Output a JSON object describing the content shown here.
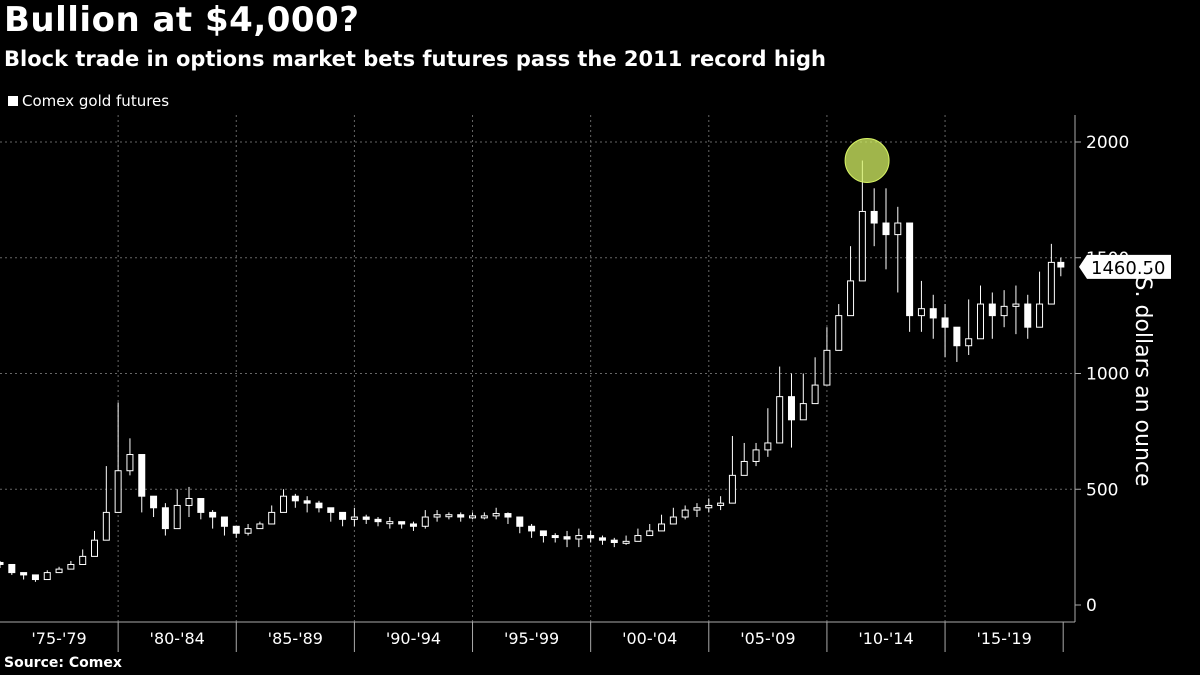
{
  "chart_data": {
    "type": "candlestick",
    "title": "Bullion at $4,000?",
    "subtitle": "Block trade in options market bets futures pass the 2011 record high",
    "legend": "Comex gold futures",
    "source": "Source: Comex",
    "ylabel": "U.S. dollars an ounce",
    "ylim": [
      0,
      2000
    ],
    "yticks": [
      0,
      500,
      1000,
      1500,
      2000
    ],
    "xlim": [
      1975.0,
      2020.0
    ],
    "x_periods": [
      "'75-'79",
      "'80-'84",
      "'85-'89",
      "'90-'94",
      "'95-'99",
      "'00-'04",
      "'05-'09",
      "'10-'14",
      "'15-'19"
    ],
    "last_value": "1460.50",
    "highlight": {
      "year": 2011.7,
      "value": 1920,
      "color": "#d6f264"
    },
    "series": [
      {
        "name": "Comex gold futures",
        "x": [
          1975.0,
          1975.5,
          1976.0,
          1976.5,
          1977.0,
          1977.5,
          1978.0,
          1978.5,
          1979.0,
          1979.5,
          1980.0,
          1980.5,
          1981.0,
          1981.5,
          1982.0,
          1982.5,
          1983.0,
          1983.5,
          1984.0,
          1984.5,
          1985.0,
          1985.5,
          1986.0,
          1986.5,
          1987.0,
          1987.5,
          1988.0,
          1988.5,
          1989.0,
          1989.5,
          1990.0,
          1990.5,
          1991.0,
          1991.5,
          1992.0,
          1992.5,
          1993.0,
          1993.5,
          1994.0,
          1994.5,
          1995.0,
          1995.5,
          1996.0,
          1996.5,
          1997.0,
          1997.5,
          1998.0,
          1998.5,
          1999.0,
          1999.5,
          2000.0,
          2000.5,
          2001.0,
          2001.5,
          2002.0,
          2002.5,
          2003.0,
          2003.5,
          2004.0,
          2004.5,
          2005.0,
          2005.5,
          2006.0,
          2006.5,
          2007.0,
          2007.5,
          2008.0,
          2008.5,
          2009.0,
          2009.5,
          2010.0,
          2010.5,
          2011.0,
          2011.5,
          2012.0,
          2012.5,
          2013.0,
          2013.5,
          2014.0,
          2014.5,
          2015.0,
          2015.5,
          2016.0,
          2016.5,
          2017.0,
          2017.5,
          2018.0,
          2018.5,
          2019.0,
          2019.5,
          2019.9
        ],
        "close": [
          175,
          140,
          130,
          110,
          140,
          155,
          175,
          210,
          280,
          400,
          580,
          650,
          470,
          420,
          330,
          430,
          460,
          400,
          380,
          340,
          310,
          330,
          350,
          400,
          470,
          450,
          440,
          420,
          400,
          370,
          380,
          370,
          360,
          360,
          350,
          340,
          380,
          390,
          390,
          380,
          385,
          385,
          395,
          380,
          340,
          320,
          300,
          295,
          285,
          300,
          290,
          280,
          270,
          275,
          300,
          320,
          350,
          380,
          410,
          420,
          430,
          440,
          560,
          620,
          670,
          700,
          900,
          800,
          870,
          950,
          1100,
          1250,
          1400,
          1700,
          1650,
          1600,
          1650,
          1250,
          1280,
          1240,
          1200,
          1120,
          1150,
          1300,
          1250,
          1290,
          1300,
          1200,
          1300,
          1480,
          1460
        ],
        "high": [
          190,
          160,
          140,
          130,
          150,
          165,
          190,
          240,
          320,
          600,
          875,
          720,
          520,
          470,
          440,
          500,
          510,
          430,
          410,
          370,
          340,
          350,
          360,
          430,
          500,
          480,
          470,
          450,
          420,
          400,
          420,
          390,
          380,
          380,
          360,
          360,
          410,
          410,
          400,
          400,
          400,
          400,
          420,
          400,
          370,
          350,
          320,
          310,
          320,
          330,
          320,
          300,
          290,
          300,
          330,
          350,
          390,
          420,
          430,
          440,
          460,
          470,
          730,
          700,
          700,
          850,
          1030,
          1000,
          1000,
          1070,
          1200,
          1300,
          1550,
          1920,
          1800,
          1800,
          1720,
          1450,
          1400,
          1340,
          1300,
          1200,
          1320,
          1380,
          1350,
          1360,
          1380,
          1340,
          1440,
          1560,
          1500
        ],
        "low": [
          160,
          130,
          110,
          100,
          120,
          140,
          160,
          190,
          240,
          360,
          470,
          560,
          400,
          380,
          300,
          330,
          380,
          370,
          330,
          300,
          290,
          300,
          330,
          360,
          400,
          420,
          400,
          400,
          360,
          340,
          340,
          350,
          340,
          330,
          330,
          320,
          330,
          360,
          370,
          360,
          370,
          370,
          370,
          350,
          310,
          290,
          270,
          270,
          250,
          250,
          270,
          260,
          250,
          260,
          280,
          300,
          320,
          350,
          370,
          380,
          400,
          410,
          500,
          560,
          600,
          640,
          700,
          680,
          800,
          900,
          1040,
          1150,
          1300,
          1520,
          1550,
          1450,
          1350,
          1180,
          1180,
          1150,
          1070,
          1050,
          1080,
          1200,
          1150,
          1200,
          1170,
          1150,
          1240,
          1380,
          1420
        ]
      }
    ]
  }
}
